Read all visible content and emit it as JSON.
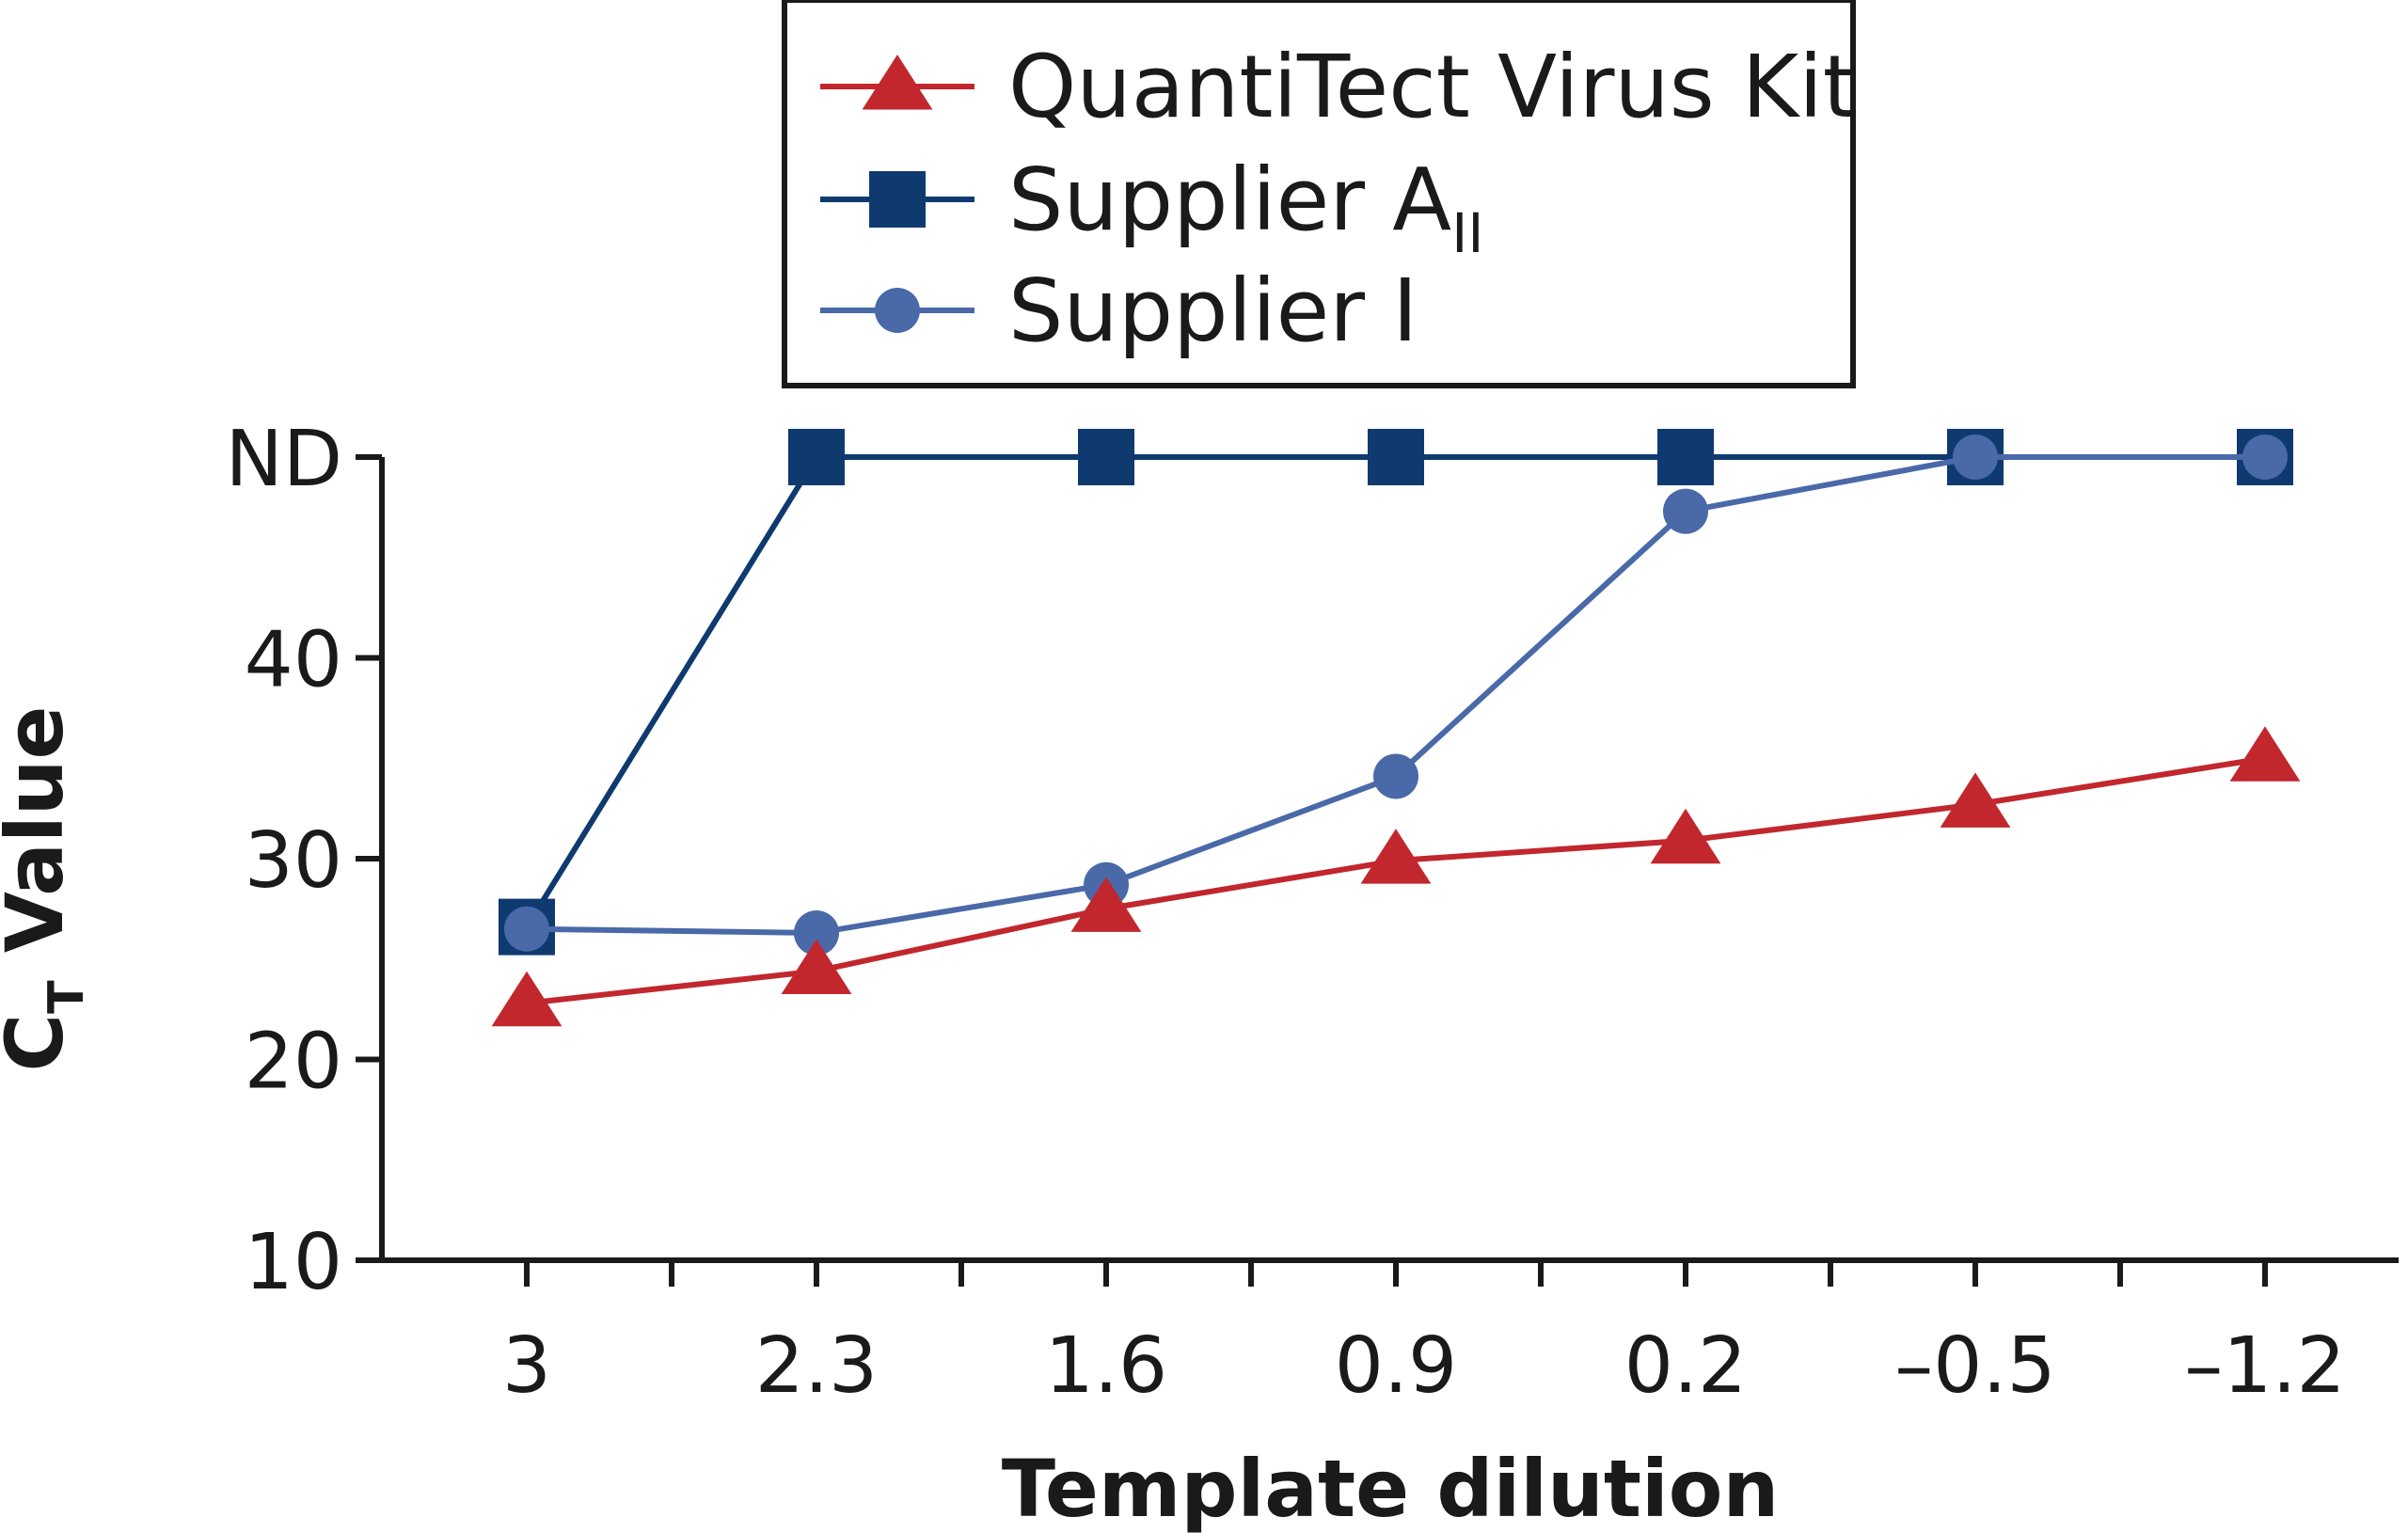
{
  "chart_data": {
    "type": "line",
    "title": "",
    "xlabel": "Template dilution",
    "ylabel": {
      "main": "C",
      "subscript": "T",
      "rest": " Value"
    },
    "categories": [
      "3",
      "2.3",
      "1.6",
      "0.9",
      "0.2",
      "–0.5",
      "–1.2"
    ],
    "y_ticks": [
      10,
      20,
      30,
      40,
      "ND"
    ],
    "ylim": [
      10,
      50
    ],
    "nd_value": 50,
    "series": [
      {
        "name": "QuantiTect Virus Kit",
        "marker": "triangle",
        "color": "#c1272d",
        "values": [
          22.8,
          24.4,
          27.5,
          29.9,
          30.9,
          32.7,
          35.0
        ]
      },
      {
        "name": "Supplier A",
        "name_subscript": "II",
        "marker": "square",
        "color": "#0f3a70",
        "values": [
          26.6,
          "ND",
          "ND",
          "ND",
          "ND",
          "ND",
          "ND"
        ]
      },
      {
        "name": "Supplier I",
        "marker": "circle",
        "color": "#4a69a8",
        "values": [
          26.5,
          26.3,
          28.7,
          34.1,
          47.3,
          "ND",
          "ND"
        ]
      }
    ],
    "legend_position": "top-center",
    "grid": false
  }
}
